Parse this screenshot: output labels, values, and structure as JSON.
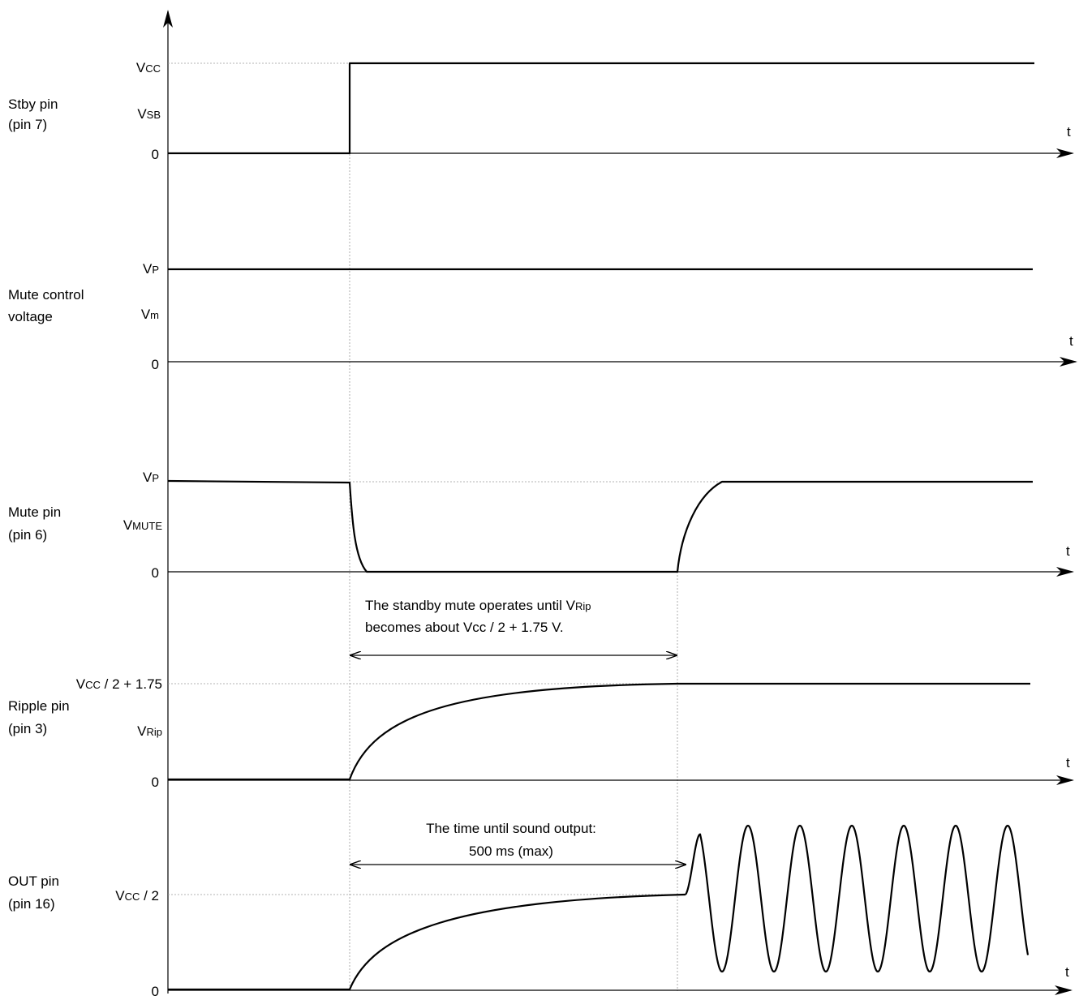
{
  "axis_label": "t",
  "stby": {
    "name_line1": "Stby pin",
    "name_line2": "(pin 7)",
    "level_vcc_main": "V",
    "level_vcc_sub": "CC",
    "level_vsb_main": "V",
    "level_vsb_sub": "SB",
    "level_zero": "0"
  },
  "mute_control": {
    "name_line1": "Mute control",
    "name_line2": "voltage",
    "level_vp_main": "V",
    "level_vp_sub": "P",
    "level_vm_main": "V",
    "level_vm_sub": "m",
    "level_zero": "0"
  },
  "mute_pin": {
    "name_line1": "Mute pin",
    "name_line2": "(pin 6)",
    "level_vp_main": "V",
    "level_vp_sub": "P",
    "level_vmute_main": "V",
    "level_vmute_sub": "MUTE",
    "level_zero": "0"
  },
  "standby_note": {
    "line1_text": "The standby mute operates until V",
    "line1_sub": "Rip",
    "line2": "becomes about Vcc / 2 + 1.75 V."
  },
  "ripple": {
    "name_line1": "Ripple pin",
    "name_line2": "(pin 3)",
    "level_top_main": "V",
    "level_top_sub": "CC",
    "level_top_rest": " / 2 + 1.75",
    "level_vrip_main": "V",
    "level_vrip_sub": "Rip",
    "level_zero": "0"
  },
  "output_note": {
    "line1": "The time until sound output:",
    "line2": "500 ms (max)"
  },
  "out": {
    "name_line1": "OUT pin",
    "name_line2": "(pin 16)",
    "level_half_main": "V",
    "level_half_sub": "CC",
    "level_half_rest": " / 2",
    "level_zero": "0"
  }
}
